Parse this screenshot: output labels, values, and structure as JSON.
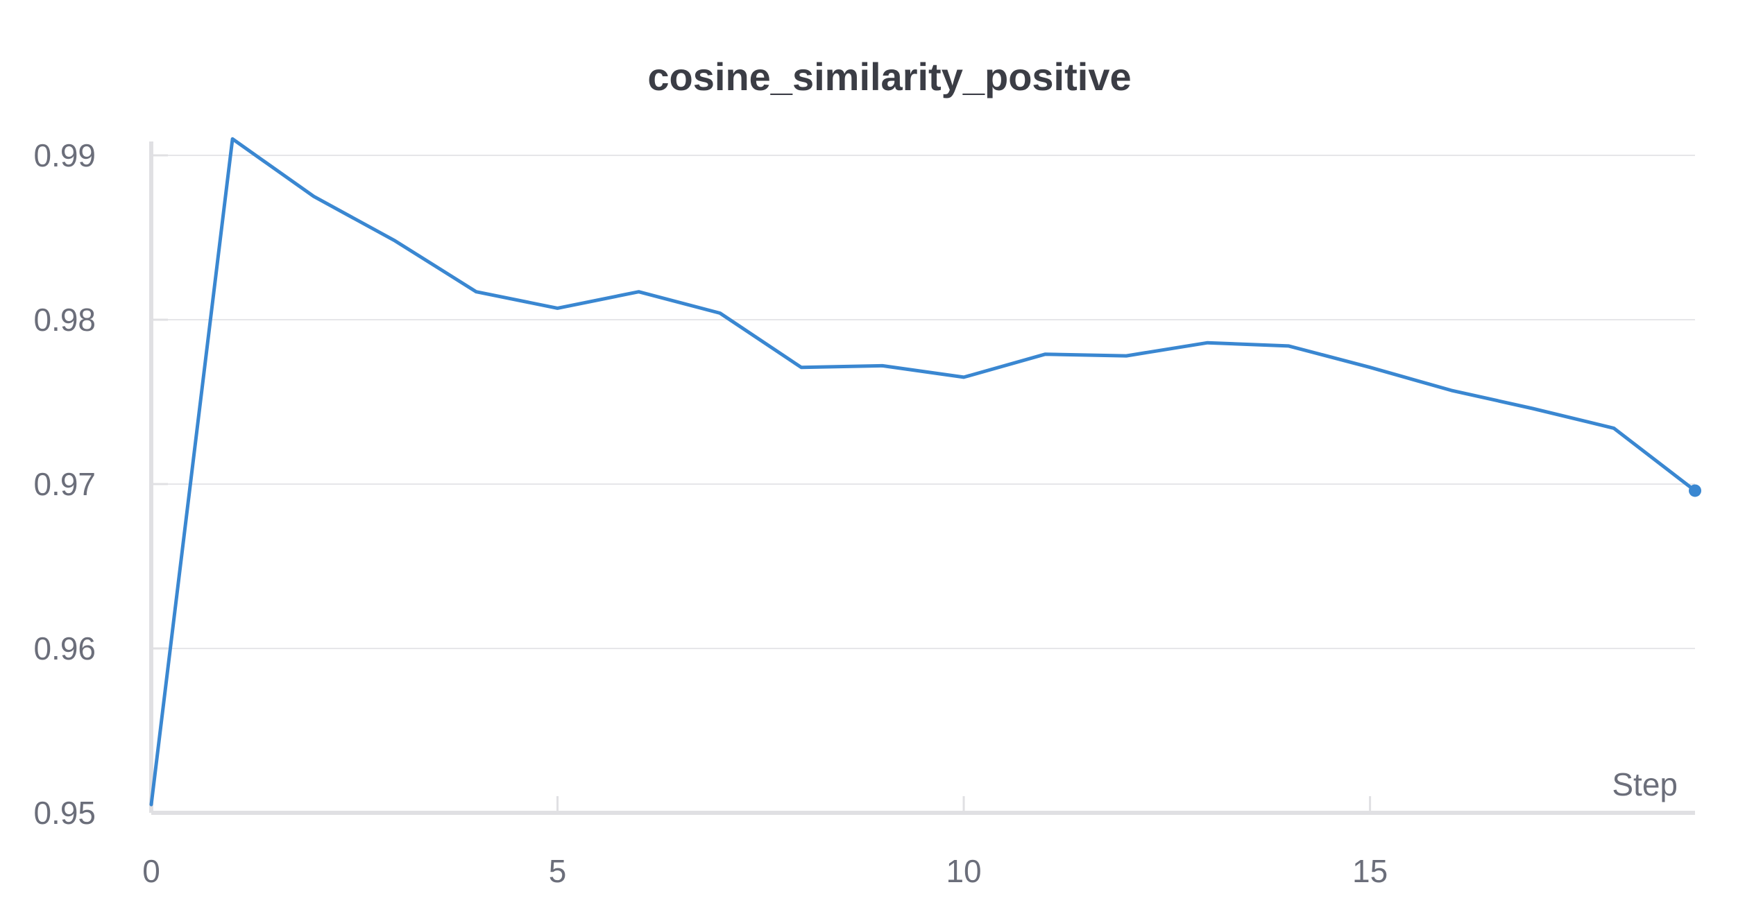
{
  "chart_data": {
    "type": "line",
    "title": "cosine_similarity_positive",
    "xlabel": "Step",
    "ylabel": "",
    "xlim": [
      0,
      19
    ],
    "ylim": [
      0.95,
      0.991
    ],
    "x_ticks": [
      0,
      5,
      10,
      15
    ],
    "x_tick_labels": [
      "0",
      "5",
      "10",
      "15"
    ],
    "y_ticks": [
      0.95,
      0.96,
      0.97,
      0.98,
      0.99
    ],
    "y_tick_labels": [
      "0.95",
      "0.96",
      "0.97",
      "0.98",
      "0.99"
    ],
    "grid": true,
    "series": [
      {
        "color": "#3a87d1",
        "x": [
          0,
          1,
          2,
          3,
          4,
          5,
          6,
          7,
          8,
          9,
          10,
          11,
          12,
          13,
          14,
          15,
          16,
          17,
          18,
          19
        ],
        "values": [
          0.9505,
          0.991,
          0.9875,
          0.9848,
          0.9817,
          0.9807,
          0.9817,
          0.9804,
          0.9771,
          0.9772,
          0.9765,
          0.9779,
          0.9778,
          0.9786,
          0.9784,
          0.9771,
          0.9757,
          0.9746,
          0.9734,
          0.9696
        ]
      }
    ],
    "last_point_marker": true
  }
}
